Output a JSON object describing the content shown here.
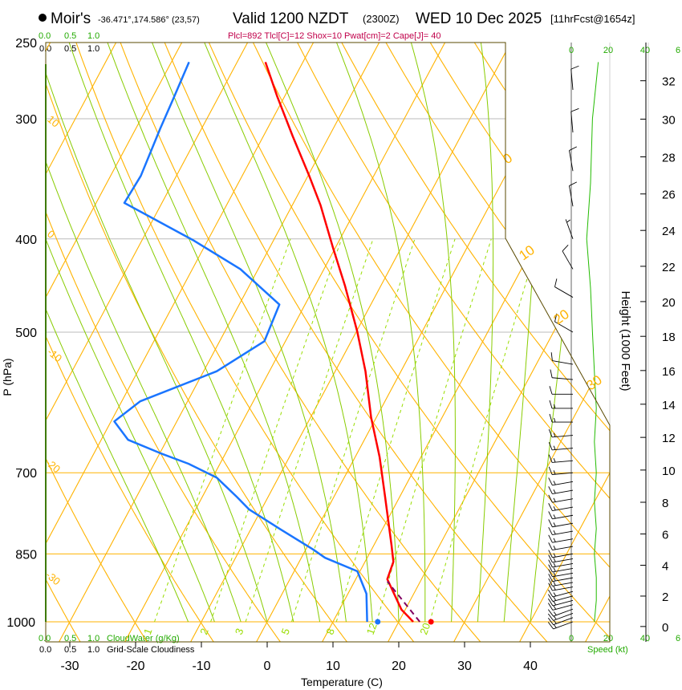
{
  "header": {
    "station": "Moir's",
    "coords": "-36.471°,174.586° (23,57)",
    "valid": "Valid 1200 NZDT",
    "utc": "(2300Z)",
    "date": "WED 10 Dec 2025",
    "forecast": "[11hrFcst@1654z]",
    "indices": "Plcl=892 Tlcl[C]=12 Shox=10 Pwat[cm]=2 Cape[J]= 40"
  },
  "legend": {
    "scale": [
      "0.0",
      "0.5",
      "1.0"
    ],
    "cloudwater_label": "CloudWater (g/Kg)",
    "cloudiness_label": "Grid-Scale Cloudiness",
    "speed_ticks": [
      "0",
      "20",
      "40",
      "6"
    ],
    "speed_label": "Speed (kt)"
  },
  "colors": {
    "temperature": "#ff0000",
    "dewpoint": "#1a75ff",
    "parcel": "#800060",
    "isotherm": "#ffb300",
    "moist": "#88cc00",
    "mixing": "#99dd00",
    "green_text": "#22aa00",
    "indices": "#c0004a"
  },
  "chart_data": {
    "type": "line",
    "subtype": "skew-T log-P",
    "xlabel": "Temperature (C)",
    "ylabel": "P (hPa)",
    "y2label": "Height (1000 Feet)",
    "xticks": [
      -30,
      -20,
      -10,
      0,
      10,
      20,
      30,
      40
    ],
    "yticks": [
      250,
      300,
      400,
      500,
      700,
      850,
      1000
    ],
    "y2ticks": [
      0,
      2,
      4,
      6,
      8,
      10,
      12,
      14,
      16,
      18,
      20,
      22,
      24,
      26,
      28,
      30,
      32
    ],
    "xlim": [
      -34,
      52
    ],
    "ylim": [
      1000,
      250
    ],
    "temperature": {
      "name": "Temperature",
      "p": [
        1000,
        971,
        903,
        866,
        833,
        742,
        674,
        613,
        549,
        499,
        447,
        409,
        369,
        344,
        313,
        284,
        262
      ],
      "t": [
        22.2,
        19.4,
        14.8,
        14.3,
        12.7,
        7.8,
        3.7,
        -0.8,
        -5.4,
        -9.9,
        -15.5,
        -20.3,
        -25.7,
        -29.8,
        -35.5,
        -41.2,
        -45.7
      ]
    },
    "dewpoint": {
      "name": "Dewpoint",
      "p": [
        1000,
        935,
        886,
        858,
        841,
        802,
        764,
        742,
        708,
        685,
        668,
        647,
        619,
        590,
        549,
        511,
        468,
        430,
        401,
        367,
        344,
        307,
        287,
        262
      ],
      "t": [
        15.2,
        12.8,
        9.6,
        3.6,
        1.1,
        -5.4,
        -11.9,
        -14.7,
        -19.4,
        -24.8,
        -29.9,
        -35.9,
        -39.5,
        -37.2,
        -28.0,
        -23.2,
        -23.9,
        -32.7,
        -42.3,
        -55.7,
        -55.4,
        -56.3,
        -56.7,
        -57.3
      ]
    },
    "parcel": {
      "name": "Parcel",
      "p": [
        1000,
        908
      ],
      "t": [
        23.2,
        15.0
      ]
    },
    "surface_temperature": 24.9,
    "surface_dewpoint": 16.8,
    "mixing_ratio_labels": [
      "1",
      "2",
      "3",
      "5",
      "8",
      "12",
      "20"
    ],
    "mixing_ratios": [
      1,
      2,
      3,
      5,
      8,
      12,
      20
    ],
    "adiabat_labels_left": [
      "10",
      "0",
      "-10",
      "-20",
      "-30"
    ],
    "adiabat_labels_right": [
      "0",
      "10",
      "20",
      "30"
    ],
    "wind_speed_profile": {
      "p": [
        1000,
        950,
        900,
        850,
        800,
        750,
        700,
        650,
        600,
        550,
        500,
        450,
        400,
        350,
        300,
        262
      ],
      "kt": [
        12,
        13,
        13,
        12,
        13,
        12,
        13,
        12,
        13,
        12,
        11,
        10,
        8,
        10,
        11,
        14
      ]
    },
    "winds": {
      "p": [
        1000,
        990,
        980,
        970,
        960,
        950,
        940,
        930,
        920,
        910,
        900,
        890,
        880,
        870,
        860,
        850,
        835,
        820,
        805,
        790,
        775,
        760,
        745,
        730,
        715,
        700,
        680,
        660,
        640,
        620,
        600,
        580,
        560,
        540,
        500,
        460,
        430,
        400,
        370,
        340,
        310,
        280
      ],
      "dir": [
        250,
        250,
        250,
        250,
        255,
        255,
        255,
        255,
        260,
        260,
        260,
        260,
        260,
        260,
        260,
        260,
        260,
        260,
        260,
        260,
        260,
        260,
        260,
        260,
        260,
        265,
        265,
        265,
        265,
        270,
        270,
        270,
        275,
        280,
        300,
        300,
        330,
        340,
        350,
        350,
        355,
        355
      ],
      "kt": [
        15,
        15,
        15,
        15,
        15,
        15,
        15,
        15,
        15,
        15,
        15,
        15,
        15,
        15,
        15,
        15,
        15,
        15,
        15,
        15,
        15,
        15,
        15,
        15,
        15,
        15,
        15,
        15,
        15,
        15,
        15,
        10,
        10,
        10,
        10,
        10,
        10,
        5,
        10,
        10,
        10,
        10
      ]
    }
  }
}
